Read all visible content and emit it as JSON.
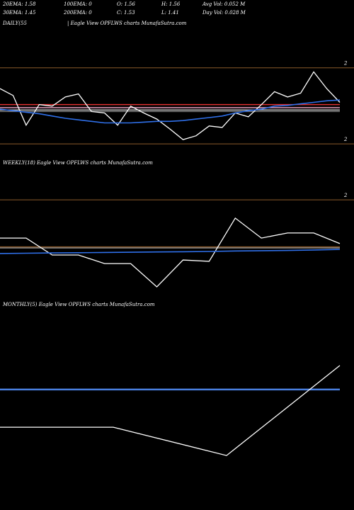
{
  "header": {
    "row1": [
      "20EMA: 1.58",
      "100EMA: 0",
      "O: 1.56",
      "H: 1.56",
      "Avg Vol: 0.052  M"
    ],
    "row2": [
      "30EMA: 1.45",
      "200EMA: 0",
      "C: 1.53",
      "L: 1.41",
      "Day Vol: 0.028  M"
    ]
  },
  "chart_data": [
    {
      "type": "line",
      "title": "DAILY(55",
      "subtitle": "| Eagle   View  OPFLWS charts MunafaSutra.com",
      "categories": [
        null,
        null,
        null,
        null,
        null,
        null,
        null,
        null,
        null,
        null,
        null,
        null,
        null,
        null,
        null,
        null,
        null,
        null,
        null,
        null,
        null,
        null,
        null,
        null,
        null,
        null,
        null
      ],
      "series": [
        {
          "color": "#ffffff",
          "values": [
            1.568,
            1.559,
            1.52,
            1.547,
            1.545,
            1.557,
            1.561,
            1.538,
            1.536,
            1.52,
            1.545,
            1.536,
            1.528,
            1.515,
            1.501,
            1.506,
            1.519,
            1.517,
            1.536,
            1.531,
            1.547,
            1.564,
            1.557,
            1.562,
            1.59,
            1.568,
            1.55
          ]
        },
        {
          "color": "#2f6fe8",
          "values": [
            1.541,
            1.539,
            1.537,
            1.535,
            1.532,
            1.529,
            1.527,
            1.525,
            1.523,
            1.523,
            1.523,
            1.524,
            1.525,
            1.525,
            1.526,
            1.528,
            1.53,
            1.532,
            1.536,
            1.539,
            1.541,
            1.545,
            1.546,
            1.548,
            1.55,
            1.552,
            1.553
          ]
        }
      ],
      "reference_lines": [
        {
          "color": "#e03030",
          "value": 1.547
        },
        {
          "color": "#e8a0c0",
          "value": 1.543
        },
        {
          "color": "#bbbbbb",
          "value": 1.54
        },
        {
          "color": "#777777",
          "value": 1.538
        }
      ],
      "ylim": [
        1.489,
        1.61
      ],
      "yticks": [
        {
          "value": 1.6,
          "label": "2"
        },
        {
          "value": 1.5,
          "label": "2"
        }
      ],
      "grid": true,
      "grid_color": "#8b5a2b"
    },
    {
      "type": "line",
      "title": "WEEKLY(18) Eagle   View  OPFLWS charts MunafaSutra.com",
      "categories": [
        null,
        null,
        null,
        null,
        null,
        null,
        null,
        null,
        null,
        null,
        null,
        null,
        null,
        null
      ],
      "series": [
        {
          "color": "#ffffff",
          "values": [
            1.435,
            1.435,
            1.368,
            1.368,
            1.334,
            1.334,
            1.242,
            1.348,
            1.343,
            1.514,
            1.435,
            1.455,
            1.455,
            1.413
          ]
        },
        {
          "color": "#2f6fe8",
          "values": [
            1.374,
            1.375,
            1.376,
            1.377,
            1.378,
            1.379,
            1.38,
            1.381,
            1.382,
            1.384,
            1.385,
            1.386,
            1.388,
            1.39
          ]
        }
      ],
      "reference_lines": [
        {
          "color": "#8b5a2b",
          "value": 1.4
        },
        {
          "color": "#888888",
          "value": 1.396
        }
      ],
      "ylim": [
        1.2,
        1.62
      ],
      "yticks": [
        {
          "value": 1.6,
          "label": "2"
        }
      ],
      "grid": true,
      "grid_color": "#8b5a2b"
    },
    {
      "type": "line",
      "title": "MONTHLY(5) Eagle   View  OPFLWS charts MunafaSutra.com",
      "categories": [
        null,
        null,
        null,
        null
      ],
      "series": [
        {
          "color": "#ffffff",
          "values": [
            1.237,
            1.237,
            1.098,
            1.54
          ]
        }
      ],
      "reference_lines": [
        {
          "color": "#4a7fe0",
          "value": 1.422
        }
      ],
      "ylim": [
        0.9,
        1.7
      ],
      "yticks": [],
      "grid": false,
      "grid_color": "#8b5a2b"
    }
  ]
}
